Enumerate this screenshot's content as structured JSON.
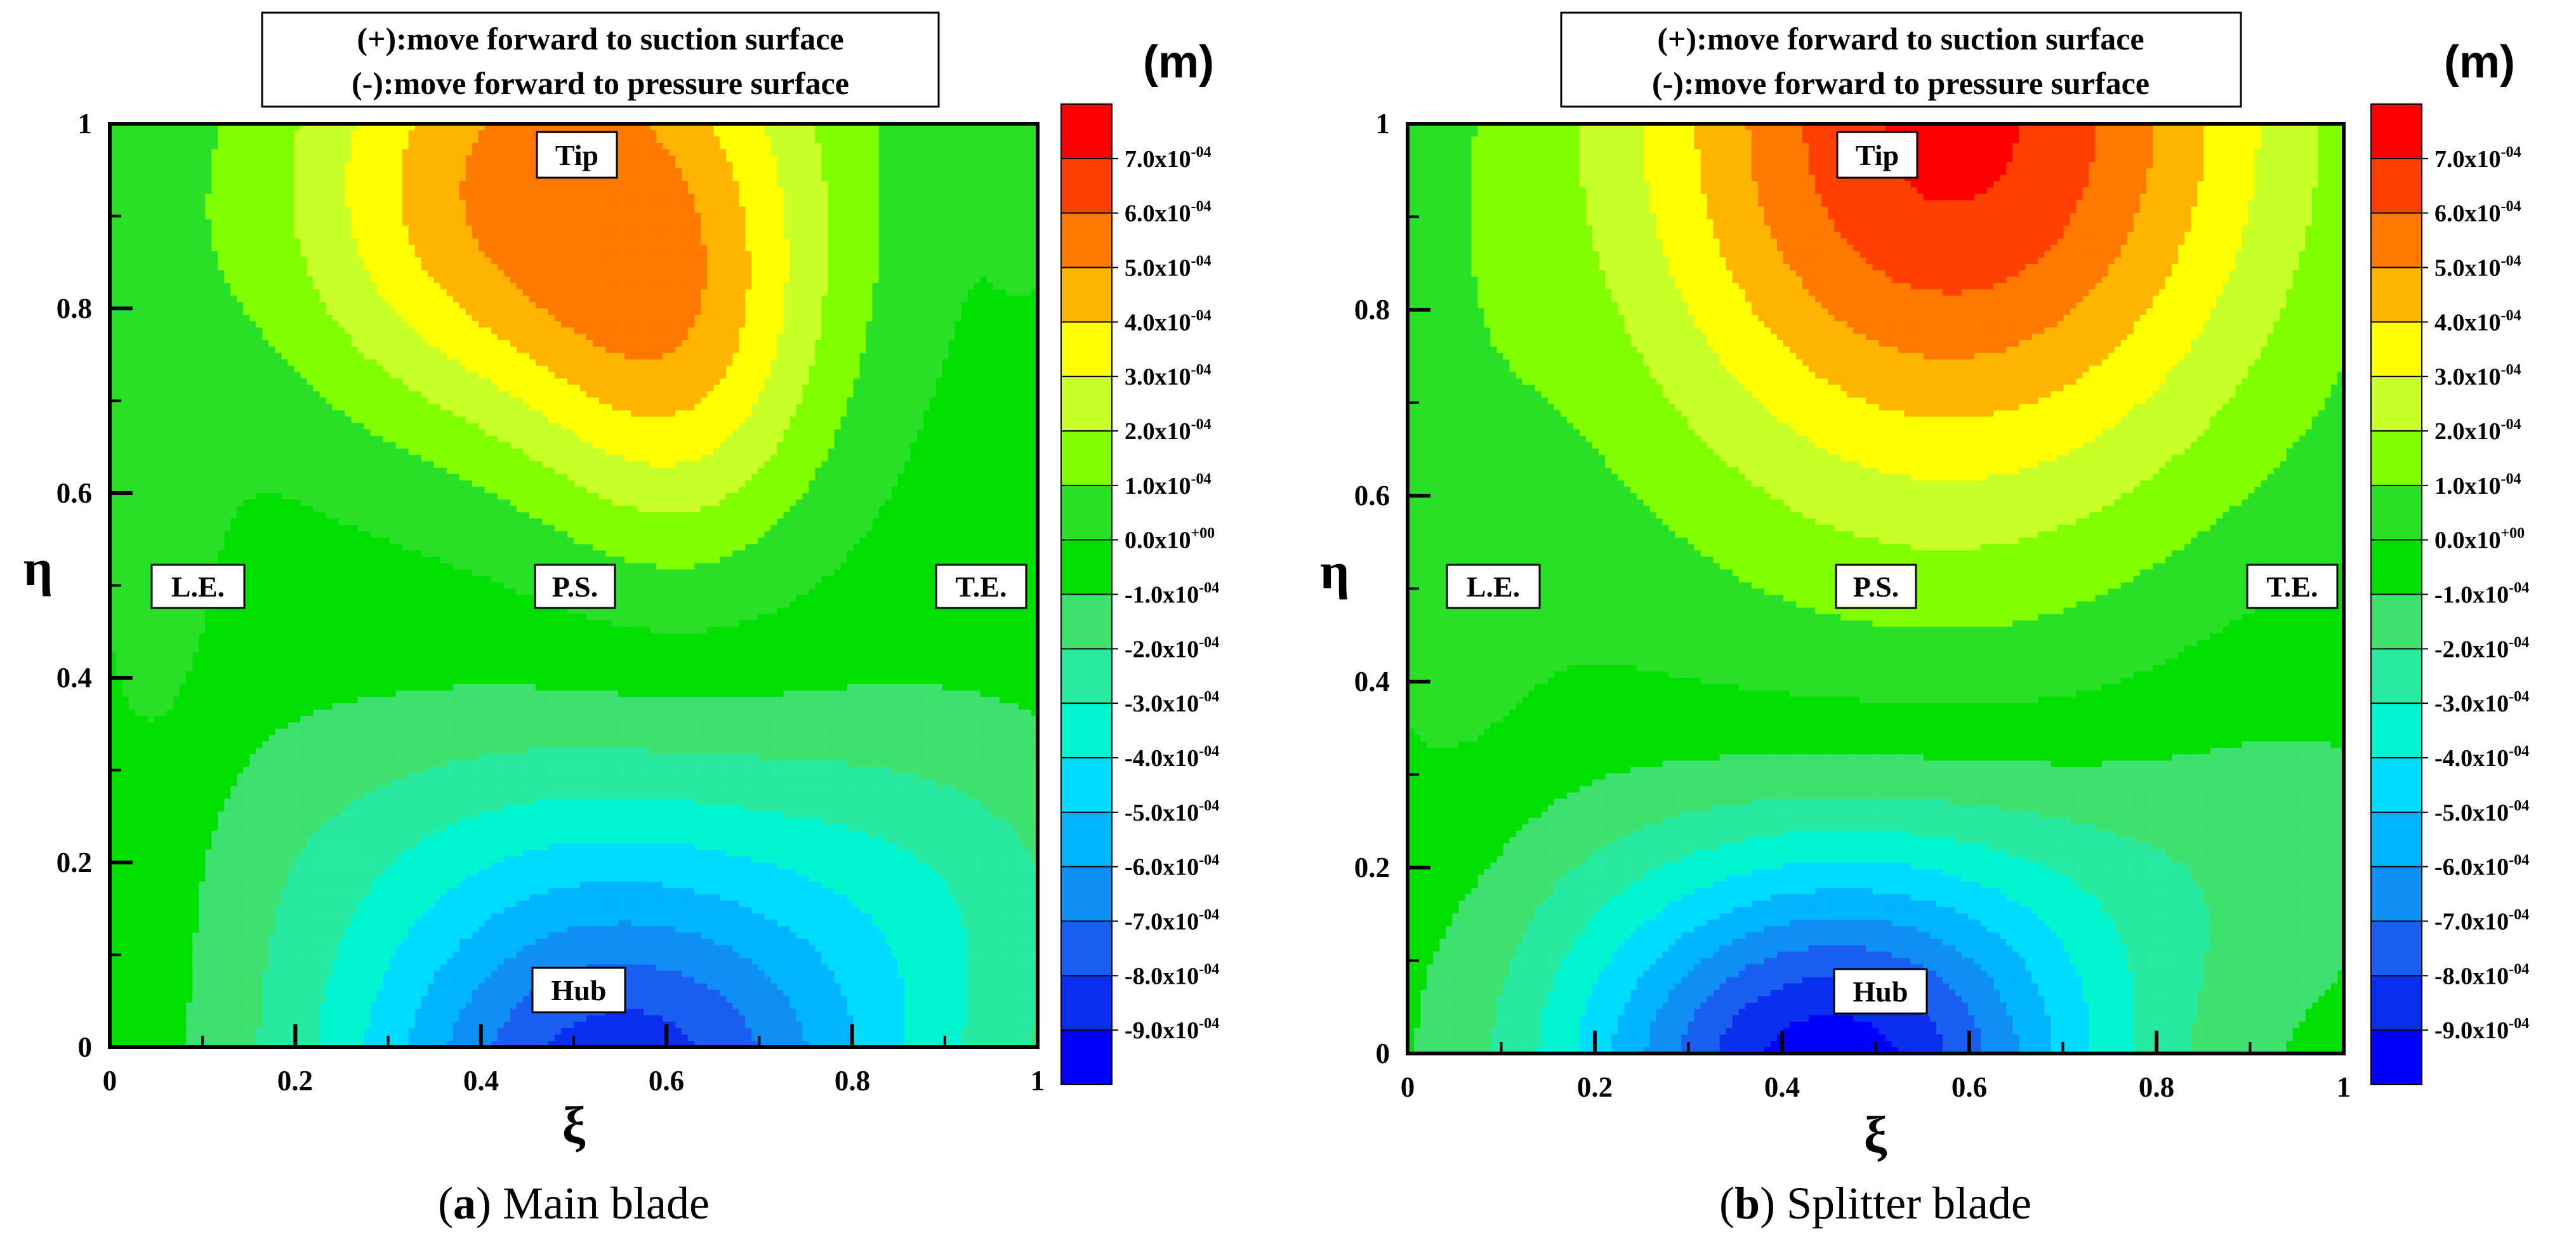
{
  "chart_data": [
    {
      "type": "contour",
      "xlabel": "ξ",
      "ylabel": "η",
      "xlim": [
        0,
        1
      ],
      "ylim": [
        0,
        1
      ],
      "xticks": [
        "0",
        "0.2",
        "0.4",
        "0.6",
        "0.8",
        "1"
      ],
      "yticks": [
        "0",
        "0.2",
        "0.4",
        "0.6",
        "0.8",
        "1"
      ],
      "unit": "(m)",
      "note_line1": "(+):move forward to suction surface",
      "note_line2": "(-):move forward to pressure surface",
      "caption_letter": "a",
      "caption_text": "Main blade",
      "caption_open": "(",
      "caption_close": ")",
      "region_labels": [
        "Tip",
        "L.E.",
        "P.S.",
        "T.E.",
        "Hub"
      ],
      "levels": [
        -0.0009,
        -0.0008,
        -0.0007,
        -0.0006,
        -0.0005,
        -0.0004,
        -0.0003,
        -0.0002,
        -0.0001,
        0.0,
        0.0001,
        0.0002,
        0.0003,
        0.0004,
        0.0005,
        0.0006,
        0.0007
      ],
      "legend_labels": [
        "7.0x10",
        "6.0x10",
        "5.0x10",
        "4.0x10",
        "3.0x10",
        "2.0x10",
        "1.0x10",
        "0.0x10",
        "-1.0x10",
        "-2.0x10",
        "-3.0x10",
        "-4.0x10",
        "-5.0x10",
        "-6.0x10",
        "-7.0x10",
        "-8.0x10",
        "-9.0x10"
      ],
      "legend_exponents": [
        "-04",
        "-04",
        "-04",
        "-04",
        "-04",
        "-04",
        "-04",
        "+00",
        "-04",
        "-04",
        "-04",
        "-04",
        "-04",
        "-04",
        "-04",
        "-04",
        "-04"
      ],
      "peak_positive": {
        "xi": 0.55,
        "eta": 0.85,
        "value": 0.00065
      },
      "peak_negative": {
        "xi": 0.5,
        "eta": 0.0,
        "value": -0.00085
      }
    },
    {
      "type": "contour",
      "xlabel": "ξ",
      "ylabel": "η",
      "xlim": [
        0,
        1
      ],
      "ylim": [
        0,
        1
      ],
      "xticks": [
        "0",
        "0.2",
        "0.4",
        "0.6",
        "0.8",
        "1"
      ],
      "yticks": [
        "0",
        "0.2",
        "0.4",
        "0.6",
        "0.8",
        "1"
      ],
      "unit": "(m)",
      "note_line1": "(+):move forward to suction surface",
      "note_line2": "(-):move forward to pressure surface",
      "caption_letter": "b",
      "caption_text": "Splitter blade",
      "caption_open": "(",
      "caption_close": ")",
      "region_labels": [
        "Tip",
        "L.E.",
        "P.S.",
        "T.E.",
        "Hub"
      ],
      "levels": [
        -0.0009,
        -0.0008,
        -0.0007,
        -0.0006,
        -0.0005,
        -0.0004,
        -0.0003,
        -0.0002,
        -0.0001,
        0.0,
        0.0001,
        0.0002,
        0.0003,
        0.0004,
        0.0005,
        0.0006,
        0.0007
      ],
      "legend_labels": [
        "7.0x10",
        "6.0x10",
        "5.0x10",
        "4.0x10",
        "3.0x10",
        "2.0x10",
        "1.0x10",
        "0.0x10",
        "-1.0x10",
        "-2.0x10",
        "-3.0x10",
        "-4.0x10",
        "-5.0x10",
        "-6.0x10",
        "-7.0x10",
        "-8.0x10",
        "-9.0x10"
      ],
      "legend_exponents": [
        "-04",
        "-04",
        "-04",
        "-04",
        "-04",
        "-04",
        "-04",
        "+00",
        "-04",
        "-04",
        "-04",
        "-04",
        "-04",
        "-04",
        "-04",
        "-04",
        "-04"
      ],
      "peak_positive": {
        "xi": 0.6,
        "eta": 0.95,
        "value": 0.0007
      },
      "peak_negative": {
        "xi": 0.45,
        "eta": 0.0,
        "value": -0.0009
      }
    }
  ],
  "colors": {
    "ramp": [
      "#0000ff",
      "#0a2ff0",
      "#1a5ff0",
      "#0f8ff5",
      "#00b4ff",
      "#00dcff",
      "#00f5d0",
      "#25eaa0",
      "#3ee070",
      "#00e000",
      "#28e028",
      "#80ff00",
      "#c8ff28",
      "#ffff00",
      "#ffb400",
      "#ff7800",
      "#ff4000",
      "#ff0000"
    ]
  }
}
